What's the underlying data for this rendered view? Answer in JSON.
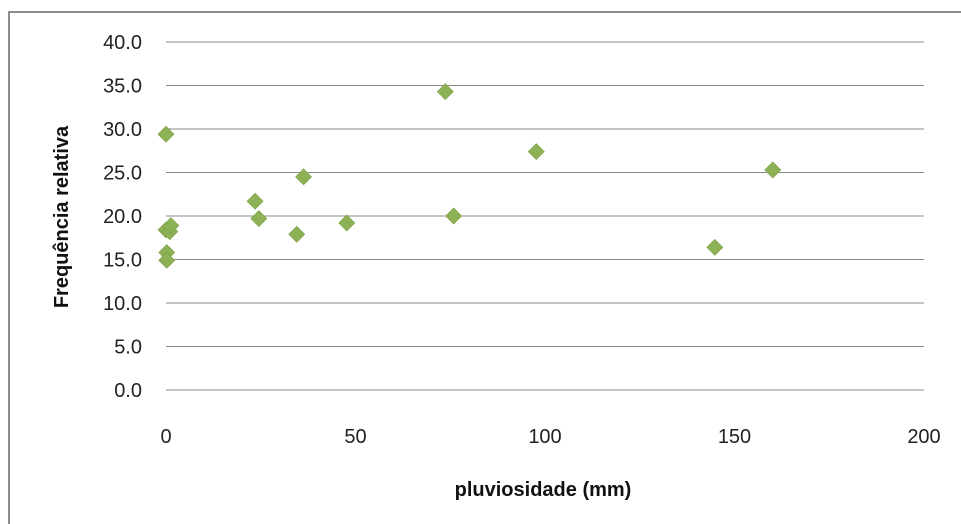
{
  "chart_data": {
    "type": "scatter",
    "xlabel": "pluviosidade (mm)",
    "ylabel": "Frequência relativa",
    "xlim": [
      0,
      200
    ],
    "ylim": [
      0,
      40
    ],
    "x_ticks": [
      0,
      50,
      100,
      150,
      200
    ],
    "y_ticks": [
      0,
      5,
      10,
      15,
      20,
      25,
      30,
      35,
      40
    ],
    "x_tick_labels": [
      "0",
      "50",
      "100",
      "150",
      "200"
    ],
    "y_tick_labels": [
      "0.0",
      "5.0",
      "10.0",
      "15.0",
      "20.0",
      "25.0",
      "30.0",
      "35.0",
      "40.0"
    ],
    "grid": "horizontal",
    "legend": "none",
    "marker_color": "#8db255",
    "series": [
      {
        "points": [
          {
            "x": 0.0,
            "y": 29.4
          },
          {
            "x": 0.0,
            "y": 18.4
          },
          {
            "x": 0.2,
            "y": 15.8
          },
          {
            "x": 0.2,
            "y": 14.9
          },
          {
            "x": 1.0,
            "y": 18.2
          },
          {
            "x": 1.3,
            "y": 18.9
          },
          {
            "x": 23.5,
            "y": 21.7
          },
          {
            "x": 24.5,
            "y": 19.7
          },
          {
            "x": 34.5,
            "y": 17.9
          },
          {
            "x": 36.3,
            "y": 24.5
          },
          {
            "x": 47.7,
            "y": 19.2
          },
          {
            "x": 73.7,
            "y": 34.3
          },
          {
            "x": 75.9,
            "y": 20.0
          },
          {
            "x": 97.7,
            "y": 27.4
          },
          {
            "x": 144.8,
            "y": 16.4
          },
          {
            "x": 160.1,
            "y": 25.3
          }
        ]
      }
    ]
  }
}
